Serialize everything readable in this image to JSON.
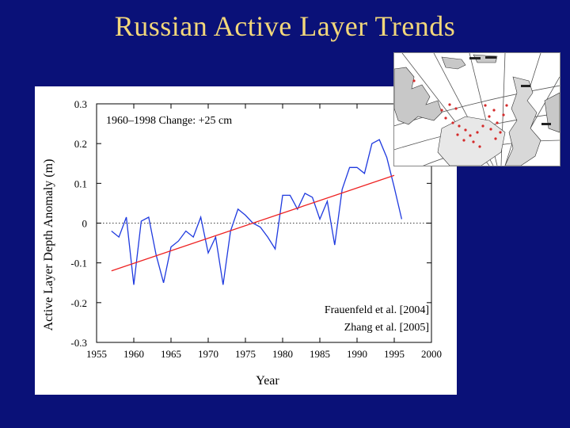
{
  "slide": {
    "title": "Russian Active Layer Trends"
  },
  "colors": {
    "background": "#0a1178",
    "title": "#f2d77a",
    "series": "#1f3adf",
    "trend": "#ee2222",
    "map_dots": "#d42a2a"
  },
  "inset_map": {
    "description_icon": "arctic-map-icon"
  },
  "chart_data": {
    "type": "line",
    "title": "",
    "xlabel": "Year",
    "ylabel": "Active Layer Depth Anomaly (m)",
    "xlim": [
      1955,
      2000
    ],
    "ylim": [
      -0.3,
      0.3
    ],
    "xticks": [
      1955,
      1960,
      1965,
      1970,
      1975,
      1980,
      1985,
      1990,
      1995,
      2000
    ],
    "yticks": [
      0.3,
      0.2,
      0.1,
      0,
      -0.1,
      -0.2,
      -0.3
    ],
    "ytick_labels": [
      "0.3",
      "0.2",
      "0.1",
      "0",
      "-0.1",
      "-0.2",
      "-0.3"
    ],
    "grid": false,
    "zero_line": true,
    "annotations": {
      "change": "1960–1998 Change: +25 cm",
      "citation_1": "Frauenfeld  et al. [2004]",
      "citation_2": "Zhang et al. [2005]"
    },
    "series": [
      {
        "x": [
          1957,
          1958,
          1959,
          1960,
          1961,
          1962,
          1963,
          1964,
          1965,
          1966,
          1967,
          1968,
          1969,
          1970,
          1971,
          1972,
          1973,
          1974,
          1975,
          1976,
          1977,
          1978,
          1979,
          1980,
          1981,
          1982,
          1983,
          1984,
          1985,
          1986,
          1987,
          1988,
          1989,
          1990,
          1991,
          1992,
          1993,
          1994,
          1995,
          1996
        ],
        "values": [
          -0.02,
          -0.035,
          0.015,
          -0.155,
          0.005,
          0.015,
          -0.08,
          -0.15,
          -0.06,
          -0.045,
          -0.02,
          -0.035,
          0.015,
          -0.075,
          -0.035,
          -0.155,
          -0.02,
          0.035,
          0.02,
          0.0,
          -0.01,
          -0.035,
          -0.065,
          0.07,
          0.07,
          0.035,
          0.075,
          0.065,
          0.01,
          0.055,
          -0.055,
          0.085,
          0.14,
          0.14,
          0.125,
          0.2,
          0.21,
          0.165,
          0.09,
          0.01
        ]
      }
    ],
    "trend": {
      "x": [
        1957,
        1995
      ],
      "values": [
        -0.12,
        0.12
      ]
    }
  }
}
